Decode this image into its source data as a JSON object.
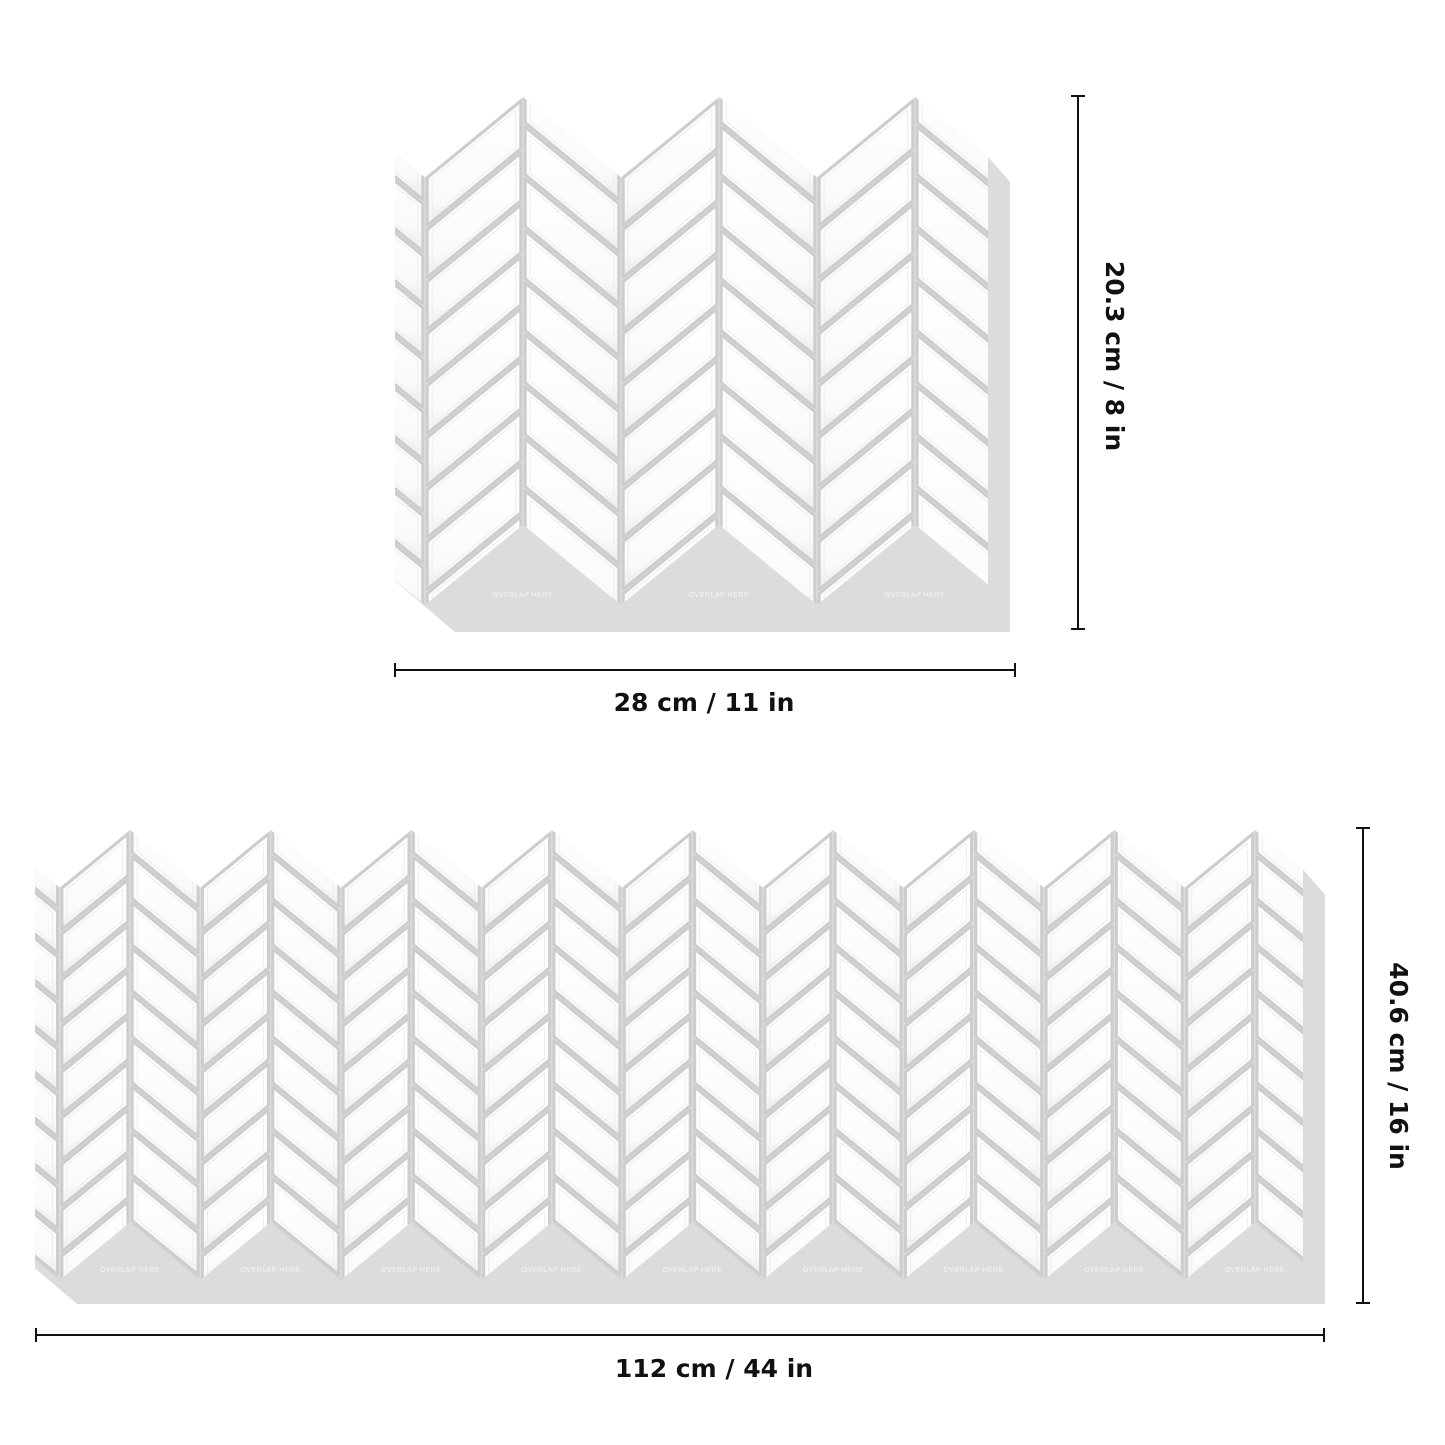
{
  "colors": {
    "background": "#ffffff",
    "tile": "#ffffff",
    "grout": "#cdcdcb",
    "backing": "#dcdcda",
    "dimension_line": "#111111"
  },
  "sheets": [
    {
      "name": "single-sheet",
      "overlap_label": "OVERLAP HERE",
      "width_label": "28 cm / 11 in",
      "height_label": "20.3 cm / 8 in"
    },
    {
      "name": "four-sheet-panel",
      "overlap_label": "OVERLAP HERE",
      "width_label": "112 cm / 44 in",
      "height_label": "40.6 cm / 16 in"
    }
  ]
}
